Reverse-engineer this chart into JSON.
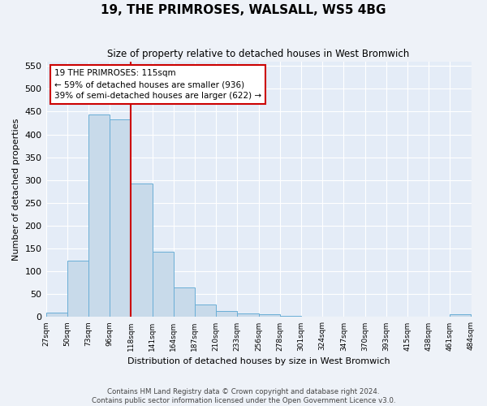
{
  "title": "19, THE PRIMROSES, WALSALL, WS5 4BG",
  "subtitle": "Size of property relative to detached houses in West Bromwich",
  "xlabel": "Distribution of detached houses by size in West Bromwich",
  "ylabel": "Number of detached properties",
  "footer_line1": "Contains HM Land Registry data © Crown copyright and database right 2024.",
  "footer_line2": "Contains public sector information licensed under the Open Government Licence v3.0.",
  "bar_values": [
    10,
    123,
    444,
    433,
    292,
    143,
    65,
    27,
    13,
    8,
    6,
    2,
    1,
    1,
    1,
    1,
    1,
    0,
    0,
    6
  ],
  "x_labels": [
    "27sqm",
    "50sqm",
    "73sqm",
    "96sqm",
    "118sqm",
    "141sqm",
    "164sqm",
    "187sqm",
    "210sqm",
    "233sqm",
    "256sqm",
    "278sqm",
    "301sqm",
    "324sqm",
    "347sqm",
    "370sqm",
    "393sqm",
    "415sqm",
    "438sqm",
    "461sqm",
    "484sqm"
  ],
  "bar_color": "#c8daea",
  "bar_edge_color": "#6aaed6",
  "vline_color": "#cc0000",
  "annotation_text": "19 THE PRIMROSES: 115sqm\n← 59% of detached houses are smaller (936)\n39% of semi-detached houses are larger (622) →",
  "annotation_box_color": "#ffffff",
  "annotation_box_edge_color": "#cc0000",
  "ylim": [
    0,
    560
  ],
  "yticks": [
    0,
    50,
    100,
    150,
    200,
    250,
    300,
    350,
    400,
    450,
    500,
    550
  ],
  "bg_color": "#eef2f8",
  "plot_bg_color": "#e4ecf7"
}
